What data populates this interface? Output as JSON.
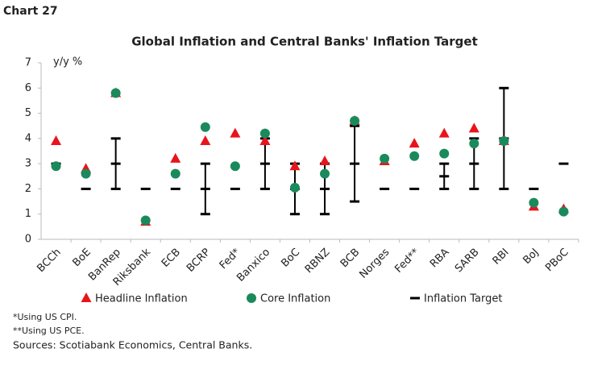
{
  "chart_data": {
    "type": "inflation-target",
    "label": "Chart 27",
    "title": "Global Inflation and Central Banks' Inflation Target",
    "y_axis_label": "y/y %",
    "categories": [
      "BCCh",
      "BoE",
      "BanRep",
      "Riksbank",
      "ECB",
      "BCRP",
      "Fed*",
      "Banxico",
      "BoC",
      "RBNZ",
      "BCB",
      "Norges",
      "Fed**",
      "RBA",
      "SARB",
      "RBI",
      "BoJ",
      "PBoC"
    ],
    "series": [
      {
        "name": "Headline Inflation",
        "color": "#e8141c",
        "marker": "triangle",
        "values": [
          3.9,
          2.8,
          5.8,
          0.7,
          3.2,
          3.9,
          4.2,
          3.9,
          2.9,
          3.1,
          4.7,
          3.1,
          3.8,
          4.2,
          4.4,
          3.9,
          1.3,
          1.2
        ]
      },
      {
        "name": "Core Inflation",
        "color": "#1a8a5c",
        "marker": "circle",
        "values": [
          2.9,
          2.6,
          5.8,
          0.75,
          2.6,
          4.45,
          2.9,
          4.2,
          2.05,
          2.6,
          4.7,
          3.2,
          3.3,
          3.4,
          3.8,
          3.9,
          1.45,
          1.1
        ]
      },
      {
        "name": "Inflation Target",
        "color": "#000000",
        "marker": "dash",
        "values": [
          3,
          2,
          3,
          2,
          2,
          2,
          2,
          3,
          2,
          2,
          3,
          2,
          2,
          2.5,
          3,
          4,
          2,
          3
        ],
        "lows": [
          null,
          null,
          2,
          null,
          null,
          1,
          null,
          2,
          1,
          1,
          1.5,
          null,
          null,
          2,
          2,
          2,
          null,
          null
        ],
        "highs": [
          null,
          null,
          4,
          null,
          null,
          3,
          null,
          4,
          3,
          3,
          4.5,
          null,
          null,
          3,
          4,
          6,
          null,
          null
        ]
      }
    ],
    "ylim": [
      0,
      7
    ],
    "yticks": [
      0,
      1,
      2,
      3,
      4,
      5,
      6,
      7
    ],
    "footnotes": [
      "*Using US CPI.",
      "**Using US PCE.",
      "Sources: Scotiabank Economics, Central Banks."
    ]
  }
}
